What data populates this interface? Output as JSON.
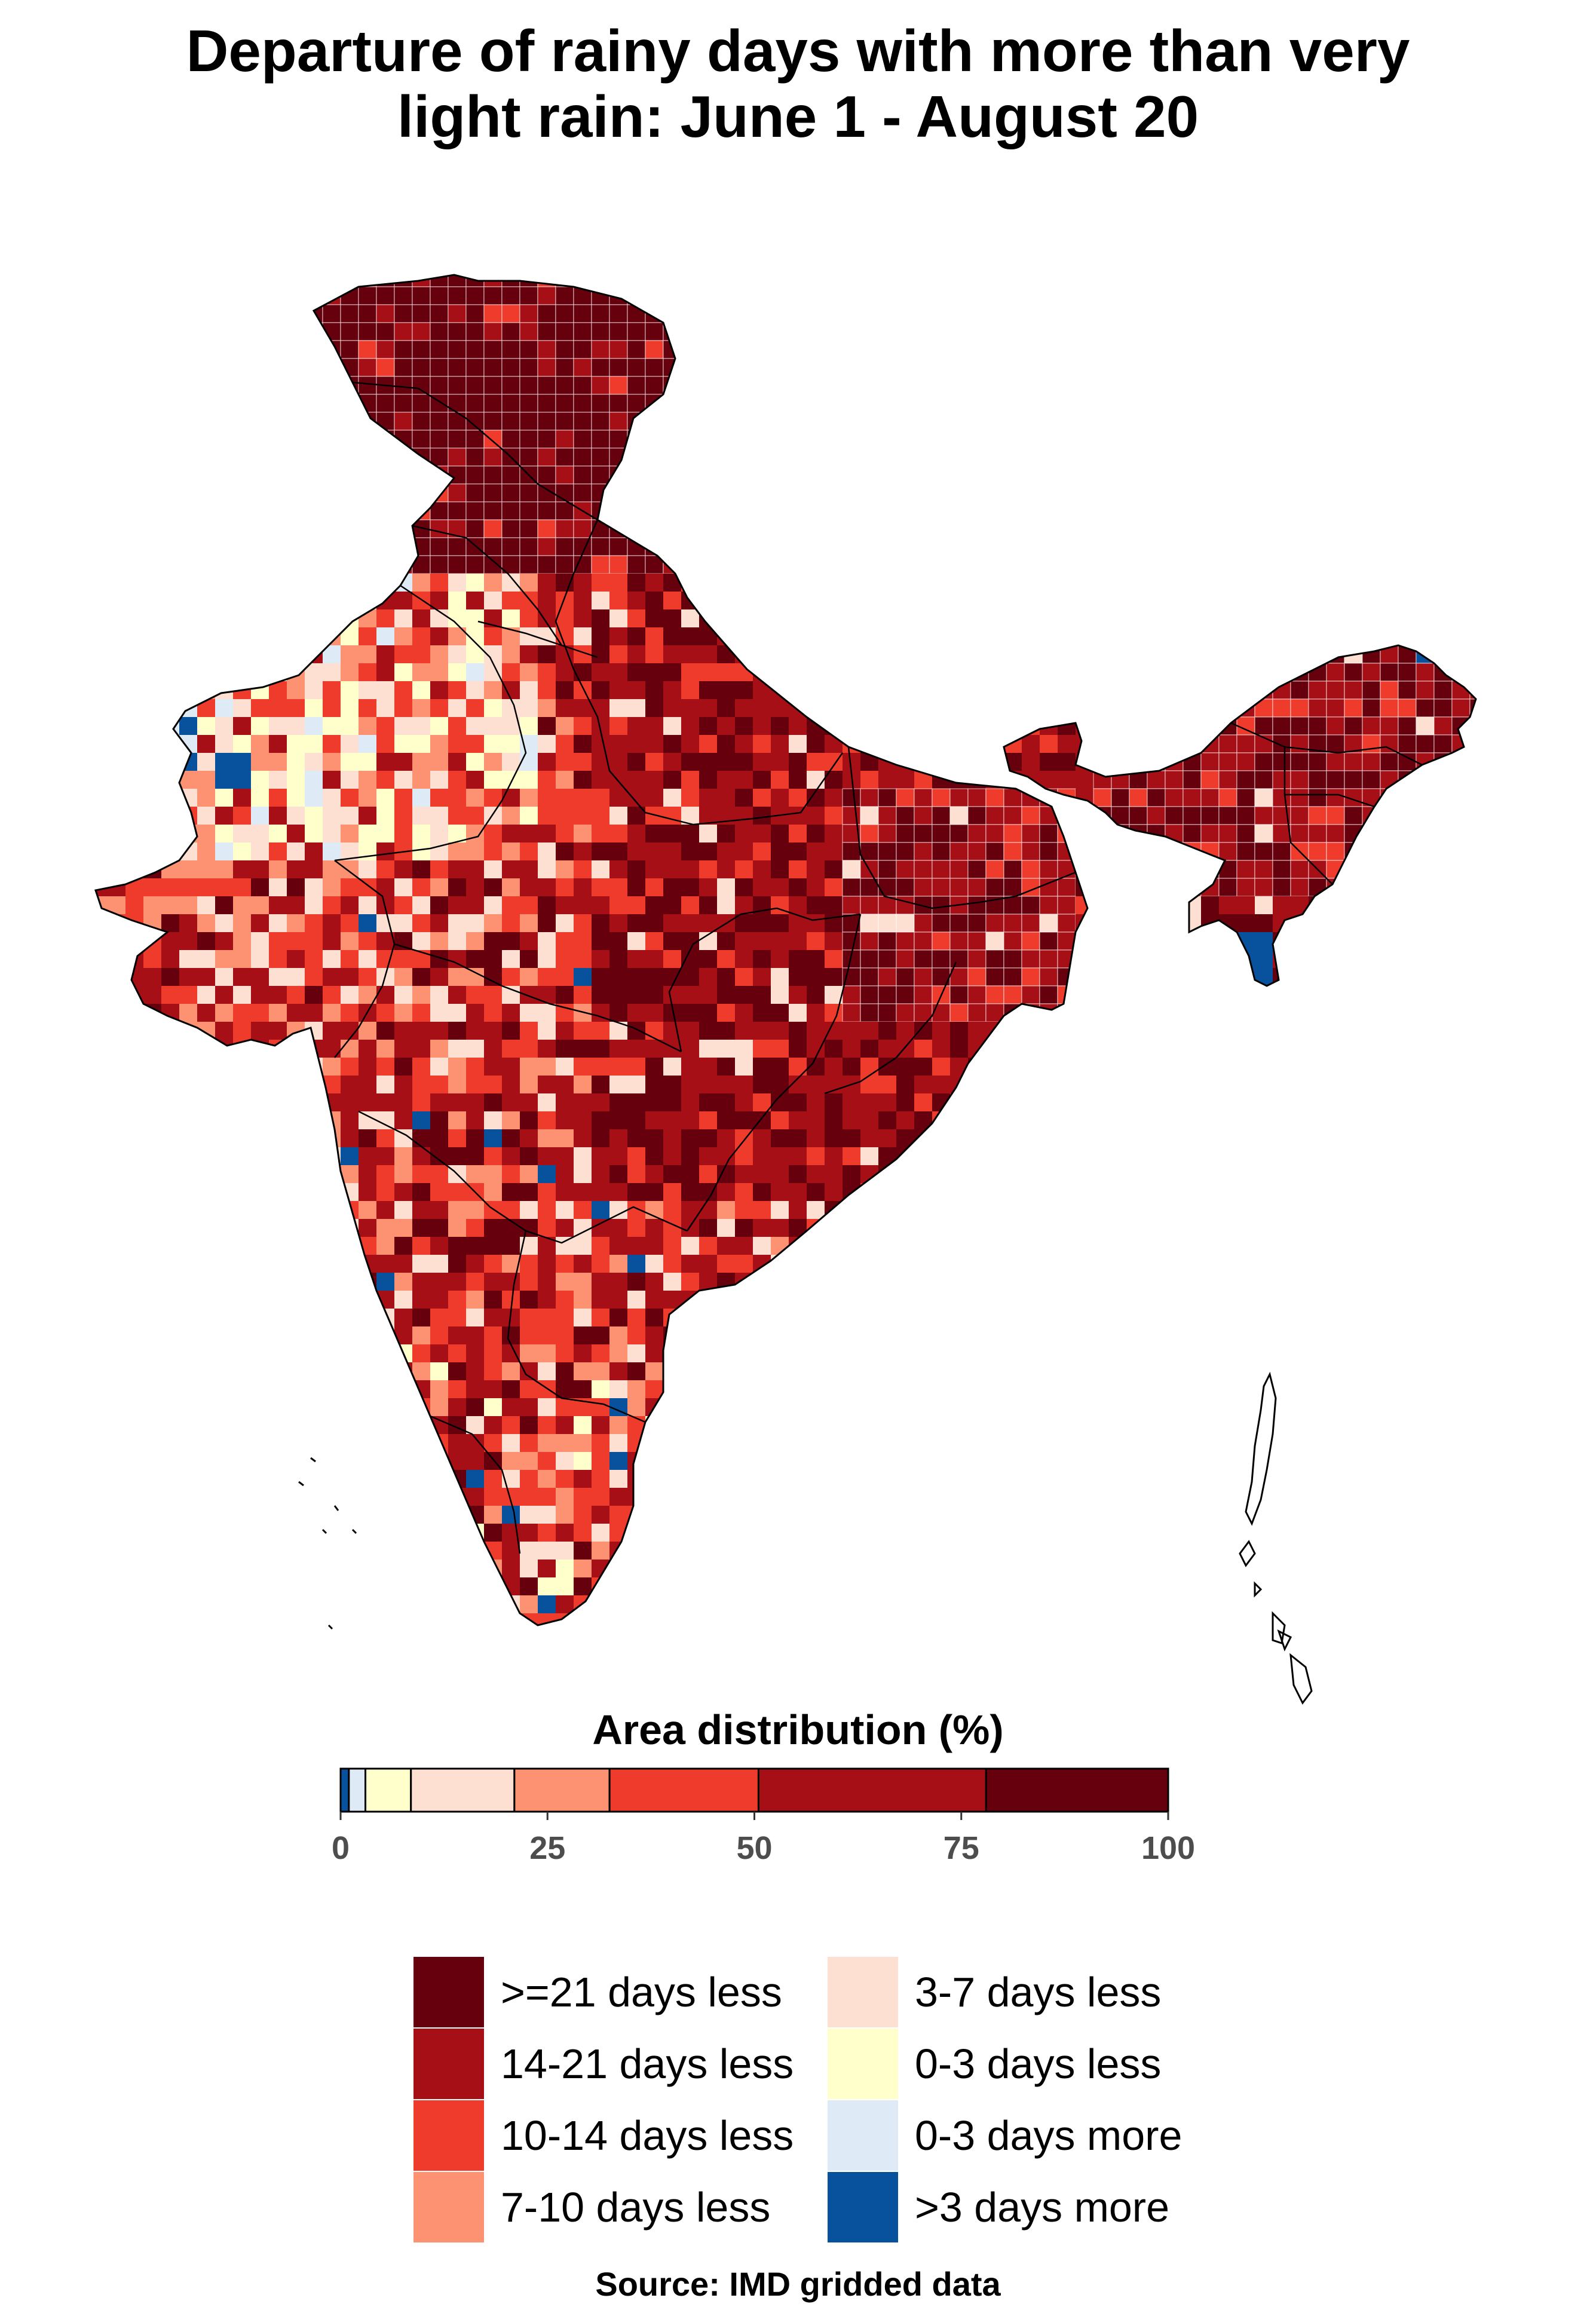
{
  "title": {
    "line1": "Departure of rainy days with more than very",
    "line2": "light rain: June 1 - August 20"
  },
  "colors": {
    "ge21_less": "#67000d",
    "d14_21_less": "#a50f15",
    "d10_14_less": "#ef3b2c",
    "d7_10_less": "#fc9272",
    "d3_7_less": "#fee0d2",
    "d0_3_less": "#ffffcc",
    "d0_3_more": "#deebf7",
    "gt3_more": "#08519c"
  },
  "area_distribution": {
    "title": "Area distribution (%)",
    "axis_range": [
      0,
      100
    ],
    "ticks": [
      "0",
      "25",
      "50",
      "75",
      "100"
    ],
    "segments": [
      {
        "category": ">3 days more",
        "percent": 1.0,
        "color": "#08519c"
      },
      {
        "category": "0-3 days more",
        "percent": 2.0,
        "color": "#deebf7"
      },
      {
        "category": "0-3 days less",
        "percent": 5.5,
        "color": "#ffffcc"
      },
      {
        "category": "3-7 days less",
        "percent": 12.5,
        "color": "#fee0d2"
      },
      {
        "category": "7-10 days less",
        "percent": 11.5,
        "color": "#fc9272"
      },
      {
        "category": "10-14 days less",
        "percent": 18.0,
        "color": "#ef3b2c"
      },
      {
        "category": "14-21 days less",
        "percent": 27.5,
        "color": "#a50f15"
      },
      {
        "category": ">=21 days less",
        "percent": 22.0,
        "color": "#67000d"
      }
    ]
  },
  "legend": {
    "items": [
      {
        "label": ">=21 days less",
        "color": "#67000d"
      },
      {
        "label": "14-21 days less",
        "color": "#a50f15"
      },
      {
        "label": "10-14 days less",
        "color": "#ef3b2c"
      },
      {
        "label": "7-10 days less",
        "color": "#fc9272"
      },
      {
        "label": "3-7 days less",
        "color": "#fee0d2"
      },
      {
        "label": "0-3 days less",
        "color": "#ffffcc"
      },
      {
        "label": "0-3 days more",
        "color": "#deebf7"
      },
      {
        "label": ">3 days more",
        "color": "#08519c"
      }
    ]
  },
  "source": "Source: IMD gridded data"
}
